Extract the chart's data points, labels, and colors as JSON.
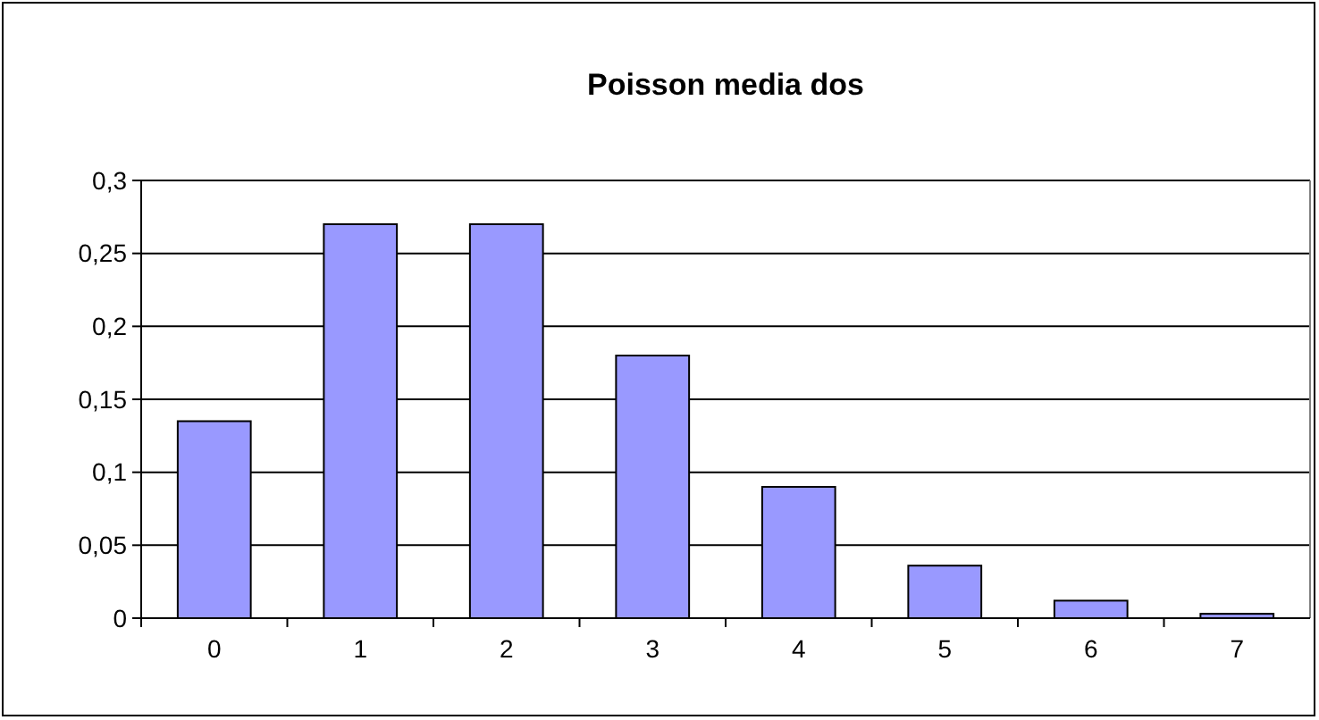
{
  "chart_data": {
    "type": "bar",
    "title": "Poisson media dos",
    "categories": [
      "0",
      "1",
      "2",
      "3",
      "4",
      "5",
      "6",
      "7"
    ],
    "values": [
      0.135,
      0.27,
      0.27,
      0.18,
      0.09,
      0.036,
      0.012,
      0.003
    ],
    "color": "#9999ff",
    "ylim": [
      0,
      0.3
    ],
    "yticks": [
      0,
      {
        "value": 0.05,
        "label": "0,05"
      },
      {
        "value": 0.1,
        "label": "0,1"
      },
      {
        "value": 0.15,
        "label": "0,15"
      },
      {
        "value": 0.2,
        "label": "0,2"
      },
      {
        "value": 0.25,
        "label": "0,25"
      },
      {
        "value": 0.3,
        "label": "0,3"
      }
    ],
    "grid": "y"
  }
}
